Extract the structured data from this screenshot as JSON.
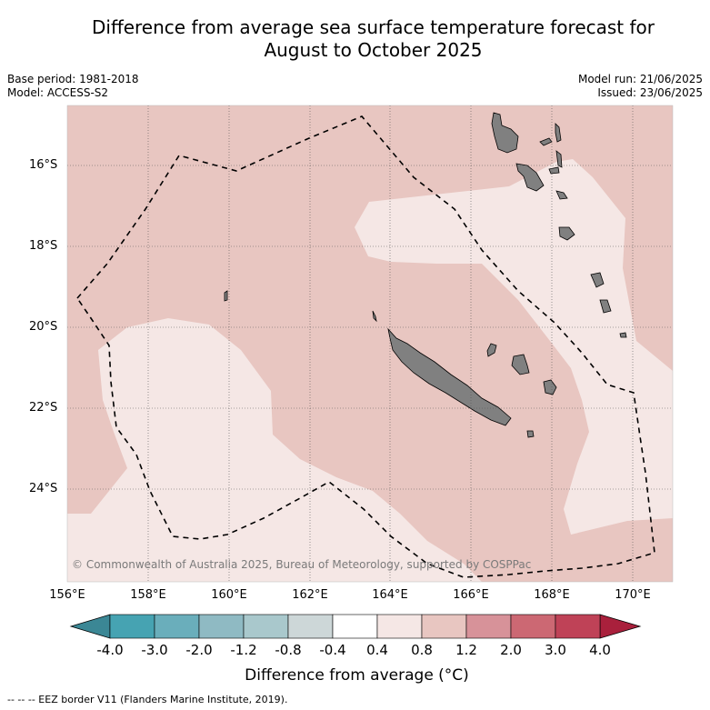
{
  "title_line1": "Difference from average sea surface temperature forecast for",
  "title_line2": "August to October 2025",
  "base_period": "Base period: 1981-2018",
  "model": "Model: ACCESS-S2",
  "model_run": "Model run: 21/06/2025",
  "issued": "Issued: 23/06/2025",
  "lat_labels": [
    "16°S",
    "18°S",
    "20°S",
    "22°S",
    "24°S"
  ],
  "lon_labels": [
    "156°E",
    "158°E",
    "160°E",
    "162°E",
    "164°E",
    "166°E",
    "168°E",
    "170°E"
  ],
  "colorbar": {
    "ticks": [
      "-4.0",
      "-3.0",
      "-2.0",
      "-1.2",
      "-0.8",
      "-0.4",
      "0.4",
      "0.8",
      "1.2",
      "2.0",
      "3.0",
      "4.0"
    ],
    "colors": [
      "#46a3b2",
      "#6aaebb",
      "#8fbac3",
      "#a9c8cc",
      "#cdd7d8",
      "#ffffff",
      "#f5e7e5",
      "#e8c6c1",
      "#d79299",
      "#cc6873",
      "#bf4257"
    ],
    "low_color": "#3b8795",
    "high_color": "#a9203c",
    "label": "Difference from average (°C)"
  },
  "colors": {
    "anomaly_0_4_to_0_8": "#f5e7e5",
    "anomaly_0_8_to_1_2": "#e8c6c1",
    "land": "#808080"
  },
  "copyright": "© Commonwealth of Australia 2025, Bureau of Meteorology, supported by COSPPac",
  "legend_eez": "--  --  -- EEZ border V11 (Flanders Marine Institute, 2019)."
}
